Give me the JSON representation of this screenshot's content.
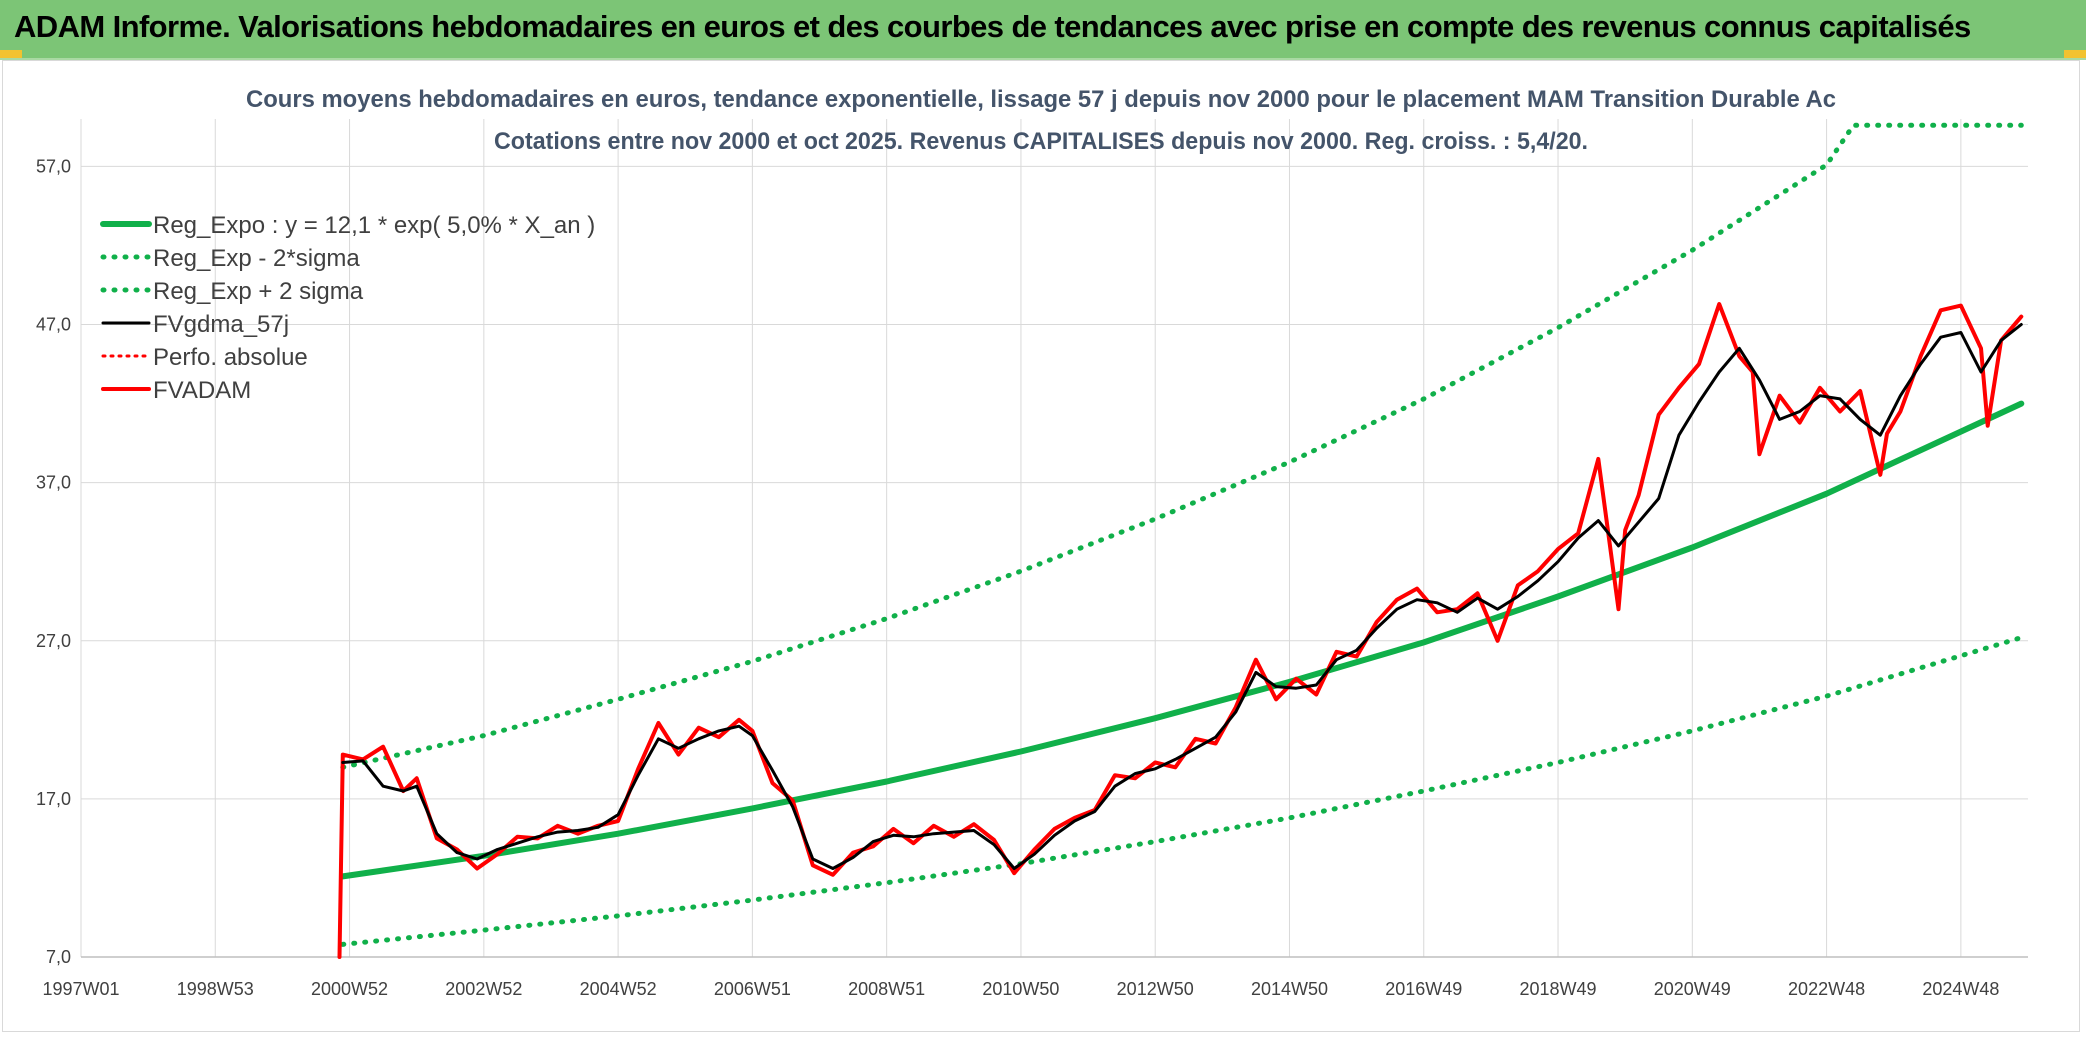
{
  "banner": {
    "title": "ADAM Informe. Valorisations hebdomadaires en euros et des courbes de tendances avec prise en compte des revenus connus capitalisés"
  },
  "chart_data": {
    "type": "line",
    "title_line1": "Cours moyens hebdomadaires en euros, tendance exponentielle, lissage 57 j depuis nov 2000 pour le placement MAM Transition Durable Ac",
    "title_line2": "Cotations entre nov 2000 et oct 2025. Revenus CAPITALISES depuis nov 2000. Reg. croiss. : 5,4/20.",
    "x_tick_labels": [
      "1997W01",
      "1998W53",
      "2000W52",
      "2002W52",
      "2004W52",
      "2006W51",
      "2008W51",
      "2010W50",
      "2012W50",
      "2014W50",
      "2016W49",
      "2018W49",
      "2020W49",
      "2022W48",
      "2024W48"
    ],
    "x_tick_years": [
      1997.0,
      1999.0,
      2001.0,
      2003.0,
      2005.0,
      2007.0,
      2009.0,
      2011.0,
      2013.0,
      2015.0,
      2017.0,
      2019.0,
      2021.0,
      2023.0,
      2025.0
    ],
    "xlim": [
      1997.0,
      2026.0
    ],
    "y_ticks": [
      7,
      17,
      27,
      37,
      47,
      57
    ],
    "y_tick_labels": [
      "7,0",
      "17,0",
      "27,0",
      "37,0",
      "47,0",
      "57,0"
    ],
    "ylim": [
      7.0,
      60.0
    ],
    "grid": true,
    "legend_position": "top-left",
    "colors": {
      "green": "#10b04a",
      "black": "#000000",
      "red": "#ff0000"
    },
    "legend": [
      {
        "label": "Reg_Expo : y = 12,1 * exp( 5,0% *  X_an )",
        "color": "#10b04a",
        "style": "solid-thick"
      },
      {
        "label": "Reg_Exp - 2*sigma",
        "color": "#10b04a",
        "style": "dotted"
      },
      {
        "label": "Reg_Exp + 2 sigma",
        "color": "#10b04a",
        "style": "dotted"
      },
      {
        "label": "FVgdma_57j",
        "color": "#000000",
        "style": "solid"
      },
      {
        "label": "Perfo. absolue",
        "color": "#ff0000",
        "style": "dotted"
      },
      {
        "label": "FVADAM",
        "color": "#ff0000",
        "style": "solid-thick"
      }
    ],
    "series": [
      {
        "name": "Reg_Expo : y = 12,1 * exp( 5,0% *  X_an )",
        "x": [
          2000.9,
          2003.0,
          2005.0,
          2007.0,
          2009.0,
          2011.0,
          2013.0,
          2015.0,
          2017.0,
          2019.0,
          2021.0,
          2023.0,
          2025.9
        ],
        "values": [
          12.1,
          13.4,
          14.8,
          16.4,
          18.1,
          20.0,
          22.1,
          24.4,
          26.9,
          29.8,
          32.9,
          36.3,
          42.0
        ]
      },
      {
        "name": "Reg_Exp - 2*sigma",
        "x": [
          2000.9,
          2003.0,
          2005.0,
          2007.0,
          2009.0,
          2011.0,
          2013.0,
          2015.0,
          2017.0,
          2019.0,
          2021.0,
          2023.0,
          2025.9
        ],
        "values": [
          7.8,
          8.7,
          9.6,
          10.6,
          11.7,
          12.9,
          14.3,
          15.8,
          17.5,
          19.3,
          21.3,
          23.5,
          27.2
        ]
      },
      {
        "name": "Reg_Exp + 2 sigma",
        "x": [
          2000.9,
          2003.0,
          2005.0,
          2007.0,
          2009.0,
          2011.0,
          2013.0,
          2015.0,
          2017.0,
          2019.0,
          2021.0,
          2023.0,
          2023.4,
          2025.9
        ],
        "values": [
          19.0,
          21.0,
          23.3,
          25.7,
          28.4,
          31.4,
          34.7,
          38.3,
          42.3,
          46.8,
          51.7,
          57.1,
          59.6,
          59.6
        ]
      },
      {
        "name": "FVgdma_57j",
        "x": [
          2000.9,
          2001.2,
          2001.5,
          2001.8,
          2002.0,
          2002.3,
          2002.6,
          2002.9,
          2003.2,
          2003.5,
          2003.8,
          2004.1,
          2004.4,
          2004.7,
          2005.0,
          2005.3,
          2005.6,
          2005.9,
          2006.2,
          2006.5,
          2006.8,
          2007.0,
          2007.3,
          2007.6,
          2007.9,
          2008.2,
          2008.5,
          2008.8,
          2009.1,
          2009.4,
          2009.7,
          2010.0,
          2010.3,
          2010.6,
          2010.9,
          2011.2,
          2011.5,
          2011.8,
          2012.1,
          2012.4,
          2012.7,
          2013.0,
          2013.3,
          2013.6,
          2013.9,
          2014.2,
          2014.5,
          2014.8,
          2015.1,
          2015.4,
          2015.7,
          2016.0,
          2016.3,
          2016.6,
          2016.9,
          2017.2,
          2017.5,
          2017.8,
          2018.1,
          2018.4,
          2018.7,
          2019.0,
          2019.3,
          2019.6,
          2019.9,
          2020.2,
          2020.5,
          2020.8,
          2021.1,
          2021.4,
          2021.7,
          2022.0,
          2022.3,
          2022.6,
          2022.9,
          2023.2,
          2023.5,
          2023.8,
          2024.1,
          2024.4,
          2024.7,
          2025.0,
          2025.3,
          2025.6,
          2025.9
        ],
        "values": [
          19.3,
          19.4,
          17.8,
          17.5,
          17.8,
          14.8,
          13.6,
          13.2,
          13.8,
          14.2,
          14.6,
          14.9,
          15.0,
          15.2,
          16.0,
          18.5,
          20.8,
          20.2,
          20.8,
          21.3,
          21.6,
          21.0,
          18.8,
          16.5,
          13.2,
          12.6,
          13.3,
          14.3,
          14.7,
          14.6,
          14.8,
          14.9,
          15.0,
          14.1,
          12.6,
          13.5,
          14.7,
          15.6,
          16.2,
          17.8,
          18.6,
          18.9,
          19.5,
          20.2,
          20.9,
          22.5,
          25.0,
          24.1,
          24.0,
          24.2,
          25.8,
          26.4,
          27.8,
          29.0,
          29.6,
          29.4,
          28.8,
          29.7,
          29.0,
          29.8,
          30.8,
          32.0,
          33.5,
          34.6,
          33.0,
          34.5,
          36.0,
          40.0,
          42.1,
          44.0,
          45.5,
          43.5,
          41.0,
          41.5,
          42.5,
          42.3,
          41.0,
          40.0,
          42.5,
          44.5,
          46.2,
          46.5,
          44.0,
          46.0,
          47.0
        ]
      },
      {
        "name": "FVADAM",
        "x": [
          2000.85,
          2000.9,
          2001.2,
          2001.5,
          2001.8,
          2002.0,
          2002.3,
          2002.6,
          2002.9,
          2003.2,
          2003.5,
          2003.8,
          2004.1,
          2004.4,
          2004.7,
          2005.0,
          2005.3,
          2005.6,
          2005.9,
          2006.2,
          2006.5,
          2006.8,
          2007.0,
          2007.3,
          2007.6,
          2007.9,
          2008.2,
          2008.5,
          2008.8,
          2009.1,
          2009.4,
          2009.7,
          2010.0,
          2010.3,
          2010.6,
          2010.9,
          2011.2,
          2011.5,
          2011.8,
          2012.1,
          2012.4,
          2012.7,
          2013.0,
          2013.3,
          2013.6,
          2013.9,
          2014.2,
          2014.5,
          2014.8,
          2015.1,
          2015.4,
          2015.7,
          2016.0,
          2016.3,
          2016.6,
          2016.9,
          2017.2,
          2017.5,
          2017.8,
          2018.1,
          2018.4,
          2018.7,
          2019.0,
          2019.3,
          2019.6,
          2019.9,
          2020.0,
          2020.2,
          2020.5,
          2020.8,
          2021.1,
          2021.4,
          2021.7,
          2021.9,
          2022.0,
          2022.3,
          2022.6,
          2022.9,
          2023.2,
          2023.5,
          2023.8,
          2023.9,
          2024.1,
          2024.4,
          2024.7,
          2025.0,
          2025.3,
          2025.4,
          2025.6,
          2025.9
        ],
        "values": [
          7.0,
          19.8,
          19.5,
          20.3,
          17.5,
          18.3,
          14.5,
          13.8,
          12.6,
          13.5,
          14.6,
          14.5,
          15.3,
          14.8,
          15.3,
          15.6,
          18.9,
          21.8,
          19.8,
          21.5,
          20.9,
          22.0,
          21.3,
          18.0,
          16.9,
          12.8,
          12.2,
          13.6,
          14.0,
          15.1,
          14.2,
          15.3,
          14.6,
          15.4,
          14.4,
          12.3,
          13.8,
          15.1,
          15.8,
          16.3,
          18.5,
          18.3,
          19.3,
          19.0,
          20.8,
          20.5,
          22.8,
          25.8,
          23.3,
          24.6,
          23.6,
          26.3,
          26.0,
          28.2,
          29.6,
          30.3,
          28.8,
          29.0,
          30.0,
          27.0,
          30.5,
          31.4,
          32.8,
          33.8,
          38.5,
          29.0,
          34.0,
          36.2,
          41.3,
          43.0,
          44.5,
          48.3,
          45.0,
          44.0,
          38.8,
          42.5,
          40.8,
          43.0,
          41.5,
          42.8,
          37.5,
          40.1,
          41.5,
          45.0,
          47.9,
          48.2,
          45.5,
          40.6,
          46.0,
          47.5
        ]
      }
    ]
  }
}
